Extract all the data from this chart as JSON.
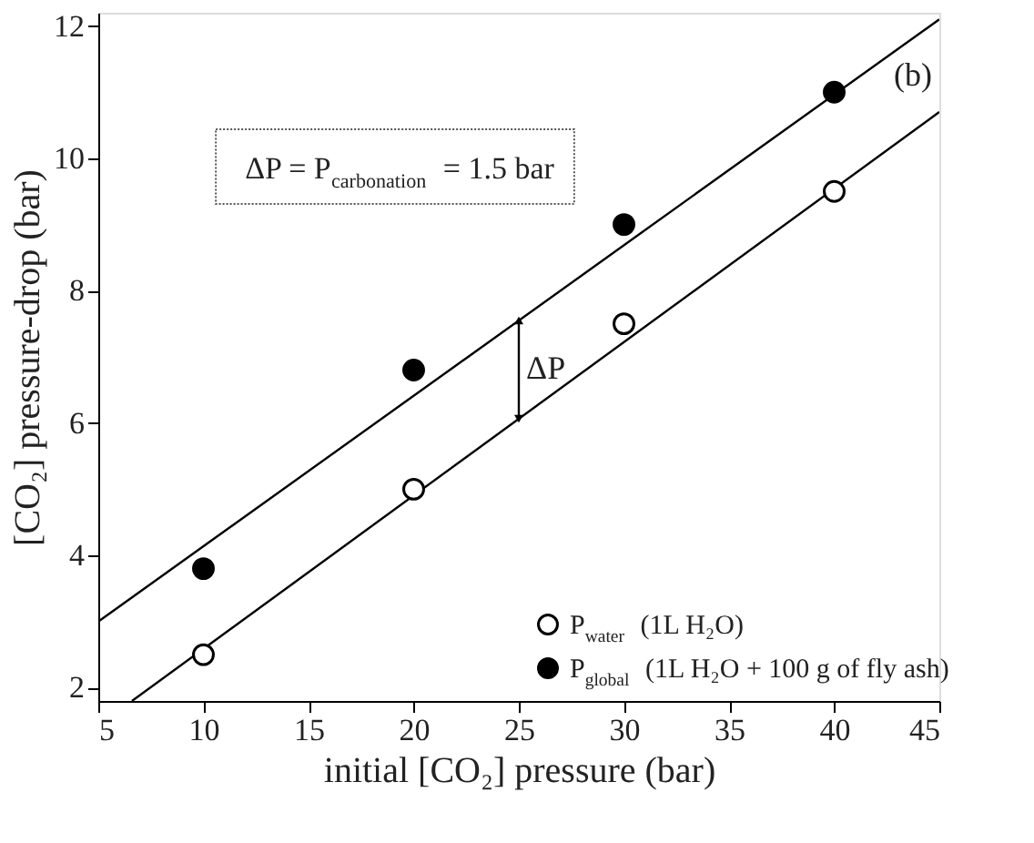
{
  "chart_data": {
    "type": "scatter",
    "xlabel": "initial [CO₂] pressure (bar)",
    "ylabel": "[CO₂] pressure-drop (bar)",
    "xlim": [
      5,
      45
    ],
    "ylim": [
      1.8,
      12.2
    ],
    "xticks": [
      5,
      10,
      15,
      20,
      25,
      30,
      35,
      40,
      45
    ],
    "yticks": [
      2,
      4,
      6,
      8,
      10,
      12
    ],
    "x": [
      10,
      20,
      30,
      40
    ],
    "marker": "circle",
    "legend": "bottom right",
    "grid": false,
    "series": [
      {
        "name": "P$_{water}$ (1L H₂O)",
        "color": "#ffffff",
        "values": [
          2.5,
          5.0,
          7.5,
          9.5
        ]
      },
      {
        "name": "P$_{global}$ (1L H₂O + 100 g of fly ash)",
        "color": "#000000",
        "values": [
          3.8,
          6.8,
          9.0,
          11.0
        ]
      },
      {
        "type": "line",
        "color": "#000000",
        "marker": "none",
        "x": [
          6.6,
          45
        ],
        "values": [
          1.8,
          10.7
        ]
      },
      {
        "type": "line",
        "color": "#000000",
        "marker": "none",
        "x": [
          5,
          45
        ],
        "values": [
          3.0,
          12.1
        ]
      }
    ],
    "annotations": [
      "(b)",
      "ΔP = P$_{carbonation}$ = 1.5 bar",
      "ΔP"
    ]
  }
}
